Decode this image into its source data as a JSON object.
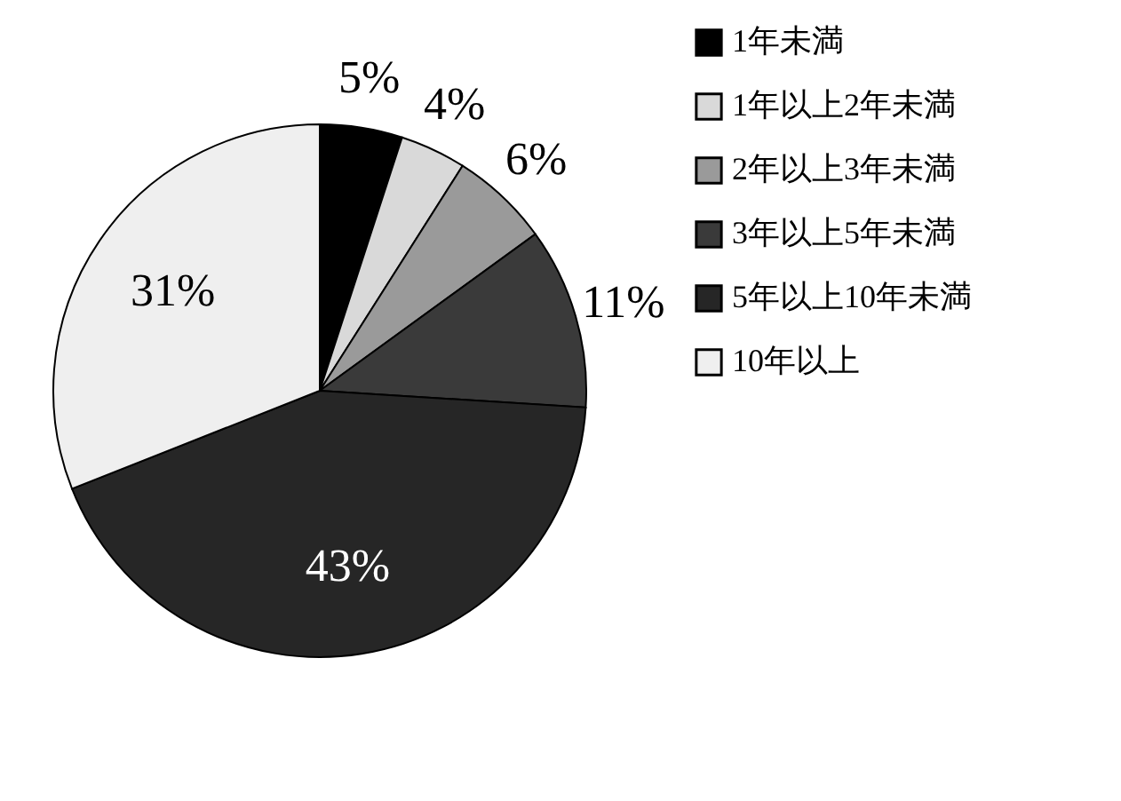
{
  "chart_data": {
    "type": "pie",
    "categories": [
      "1年未満",
      "1年以上2年未満",
      "2年以上3年未満",
      "3年以上5年未満",
      "5年以上10年未満",
      "10年以上"
    ],
    "values": [
      5,
      4,
      6,
      11,
      43,
      31
    ],
    "colors": [
      "#000000",
      "#d9d9d9",
      "#9a9a9a",
      "#3a3a3a",
      "#262626",
      "#efefef"
    ],
    "value_labels": [
      "5%",
      "4%",
      "6%",
      "11%",
      "43%",
      "31%"
    ],
    "legend": "right"
  }
}
